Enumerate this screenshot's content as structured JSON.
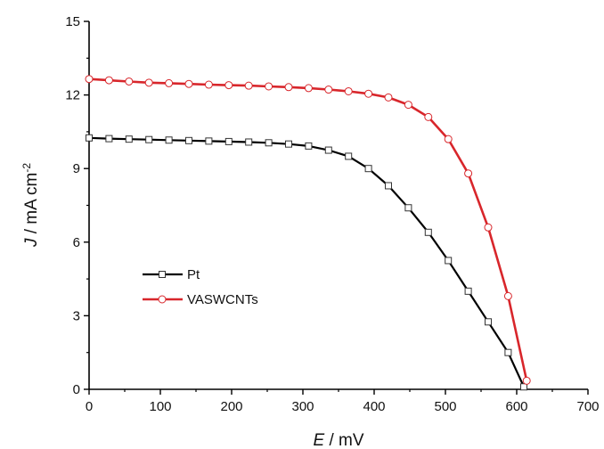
{
  "chart_data": {
    "type": "line",
    "xlabel": {
      "italic": "E",
      "rest": " / mV"
    },
    "ylabel": {
      "italic": "J",
      "rest": " / mA cm",
      "sup": "-2"
    },
    "xlim": [
      0,
      700
    ],
    "ylim": [
      0,
      15
    ],
    "x_ticks": [
      0,
      100,
      200,
      300,
      400,
      500,
      600,
      700
    ],
    "y_ticks": [
      0,
      3,
      6,
      9,
      12,
      15
    ],
    "grid": false,
    "legend_position": "lower-left",
    "series": [
      {
        "name": "Pt",
        "color": "#000000",
        "marker": "square",
        "x": [
          0,
          28,
          56,
          84,
          112,
          140,
          168,
          196,
          224,
          252,
          280,
          308,
          336,
          364,
          392,
          420,
          448,
          476,
          504,
          532,
          560,
          588,
          610
        ],
        "y": [
          10.25,
          10.22,
          10.2,
          10.18,
          10.16,
          10.14,
          10.12,
          10.1,
          10.08,
          10.05,
          10.0,
          9.92,
          9.75,
          9.5,
          9.0,
          8.3,
          7.4,
          6.4,
          5.25,
          4.0,
          2.75,
          1.5,
          0.1
        ]
      },
      {
        "name": "VASWCNTs",
        "color": "#d8262b",
        "marker": "circle",
        "x": [
          0,
          28,
          56,
          84,
          112,
          140,
          168,
          196,
          224,
          252,
          280,
          308,
          336,
          364,
          392,
          420,
          448,
          476,
          504,
          532,
          560,
          588,
          614
        ],
        "y": [
          12.65,
          12.6,
          12.55,
          12.5,
          12.48,
          12.45,
          12.42,
          12.4,
          12.38,
          12.35,
          12.32,
          12.28,
          12.22,
          12.15,
          12.05,
          11.9,
          11.6,
          11.1,
          10.2,
          8.8,
          6.6,
          3.8,
          0.35
        ]
      }
    ]
  }
}
